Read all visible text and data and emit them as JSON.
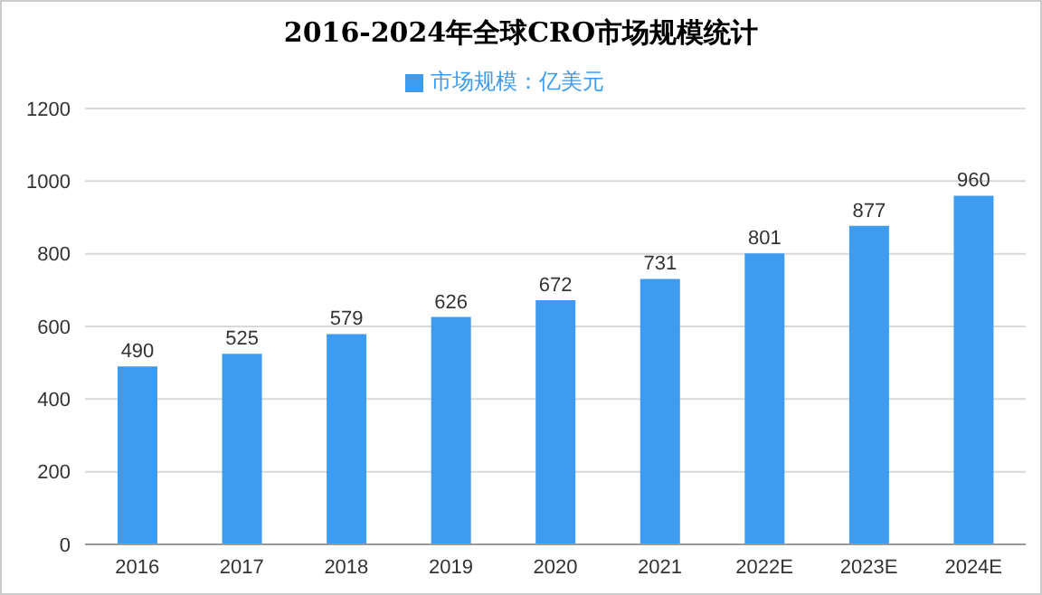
{
  "chart_data": {
    "type": "bar",
    "title": "2016-2024年全球CRO市场规模统计",
    "categories": [
      "2016",
      "2017",
      "2018",
      "2019",
      "2020",
      "2021",
      "2022E",
      "2023E",
      "2024E"
    ],
    "series": [
      {
        "name": "市场规模：亿美元",
        "color": "#3d9cf0",
        "values": [
          490,
          525,
          579,
          626,
          672,
          731,
          801,
          877,
          960
        ]
      }
    ],
    "ylim": [
      0,
      1200
    ],
    "yticks": [
      0,
      200,
      400,
      600,
      800,
      1000,
      1200
    ],
    "grid": "y",
    "legend": "top",
    "data_labels": true
  }
}
